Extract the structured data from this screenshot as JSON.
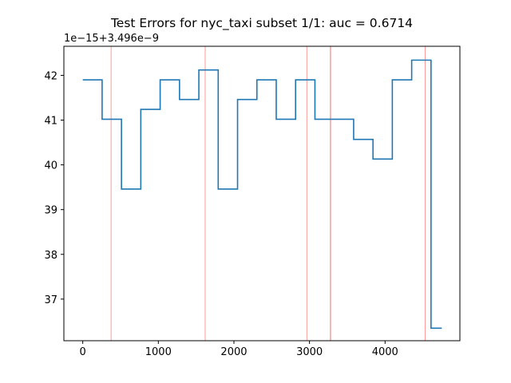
{
  "chart_data": {
    "type": "line",
    "drawstyle": "steps-post",
    "title": "Test Errors for nyc_taxi subset 1/1: auc = 0.6714",
    "xlabel": "",
    "ylabel": "",
    "y_offset_label": "1e−15+3.496e−9",
    "xlim": [
      -250,
      4990
    ],
    "ylim": [
      36.07,
      42.65
    ],
    "x_ticks": [
      0,
      1000,
      2000,
      3000,
      4000
    ],
    "y_ticks": [
      37,
      38,
      39,
      40,
      41,
      42
    ],
    "grid": false,
    "series": [
      {
        "color": "#1f77b4",
        "x": [
          0,
          256,
          512,
          768,
          1024,
          1280,
          1536,
          1792,
          2048,
          2304,
          2560,
          2816,
          3072,
          3328,
          3584,
          3840,
          4096,
          4352,
          4608,
          4750
        ],
        "values": [
          41.9,
          41.02,
          39.46,
          41.24,
          41.9,
          41.46,
          42.12,
          39.46,
          41.46,
          41.9,
          41.02,
          41.9,
          41.02,
          41.02,
          40.57,
          40.13,
          41.9,
          42.34,
          36.35,
          36.35
        ]
      }
    ],
    "anomaly_lines": {
      "color": "#ff9999",
      "x": [
        375,
        1620,
        2965,
        3275,
        3280,
        4530
      ]
    }
  }
}
